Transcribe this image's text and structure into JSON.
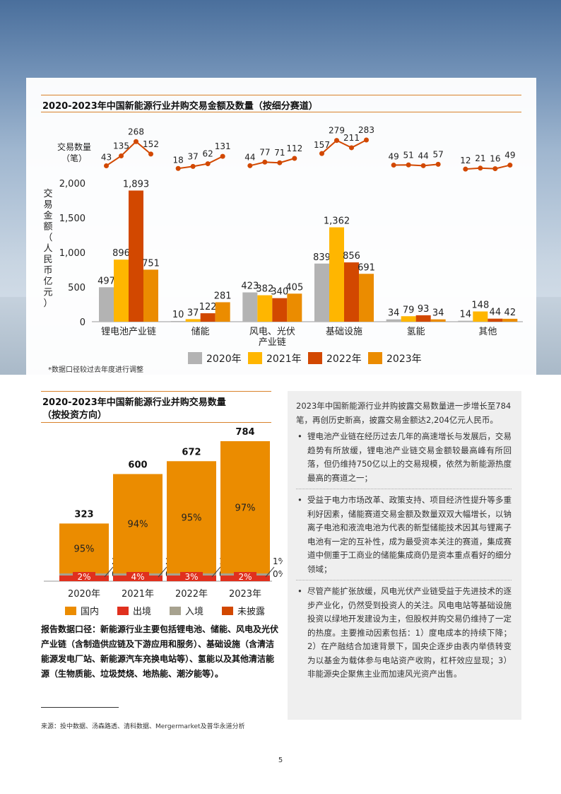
{
  "chart1": {
    "title": "2020-2023年中国新能源行业并购交易金额及数量（按细分赛道）",
    "count_label_line1": "交易数量",
    "count_label_line2": "（笔）",
    "ylabel": "交易金额（人民币亿元）",
    "note": "*数据口径较过去年度进行调整",
    "chart_data": {
      "type": "bar",
      "categories": [
        "锂电池产业链",
        "储能",
        "风电、光伏产业链",
        "基础设施",
        "氢能",
        "其他"
      ],
      "category_lines": [
        [
          "锂电池产业链"
        ],
        [
          "储能"
        ],
        [
          "风电、光伏",
          "产业链"
        ],
        [
          "基础设施"
        ],
        [
          "氢能"
        ],
        [
          "其他"
        ]
      ],
      "ylim": [
        0,
        2000
      ],
      "yticks": [
        "0",
        "500",
        "1,000",
        "1,500",
        "2,000"
      ],
      "yticks_values": [
        0,
        500,
        1000,
        1500,
        2000
      ],
      "series": [
        {
          "name": "2020年",
          "color": "#b3b3b3",
          "values": [
            497,
            10,
            423,
            839,
            34,
            14
          ],
          "labels": [
            "497",
            "10",
            "423",
            "839",
            "34",
            "14"
          ],
          "counts": [
            43,
            18,
            44,
            157,
            49,
            12
          ]
        },
        {
          "name": "2021年",
          "color": "#ffb600",
          "values": [
            896,
            37,
            382,
            1362,
            79,
            148
          ],
          "labels": [
            "896",
            "37",
            "382",
            "1,362",
            "79",
            "148"
          ],
          "counts": [
            135,
            37,
            77,
            279,
            51,
            21
          ]
        },
        {
          "name": "2022年",
          "color": "#d24800",
          "values": [
            1893,
            122,
            340,
            856,
            93,
            44
          ],
          "labels": [
            "1,893",
            "122",
            "340",
            "856",
            "93",
            "44"
          ],
          "counts": [
            268,
            62,
            71,
            211,
            44,
            16
          ]
        },
        {
          "name": "2023年",
          "color": "#eb8c00",
          "values": [
            751,
            281,
            405,
            691,
            34,
            42
          ],
          "labels": [
            "751",
            "281",
            "405",
            "691",
            "34",
            "42"
          ],
          "counts": [
            152,
            131,
            112,
            283,
            57,
            49
          ]
        }
      ],
      "line_color": "#d24800"
    }
  },
  "chart2": {
    "title_line1": "2020-2023年中国新能源行业并购交易数量",
    "title_line2": "（按投资方向）",
    "chart_data": {
      "type": "bar",
      "categories": [
        "2020年",
        "2021年",
        "2022年",
        "2023年"
      ],
      "totals": [
        323,
        600,
        672,
        784
      ],
      "total_labels": [
        "323",
        "600",
        "672",
        "784"
      ],
      "series": [
        {
          "name": "国内",
          "color": "#eb8c00",
          "pct": [
            95,
            94,
            95,
            97
          ],
          "labels": [
            "95%",
            "94%",
            "95%",
            "97%"
          ]
        },
        {
          "name": "出境",
          "color": "#e0301e",
          "pct": [
            2,
            4,
            3,
            2
          ],
          "labels": [
            "2%",
            "4%",
            "3%",
            "2%"
          ]
        },
        {
          "name": "入境",
          "color": "#a7a28f",
          "pct": [
            2,
            2,
            1,
            1
          ],
          "labels": [
            "2%",
            "2%",
            "1%",
            "1%"
          ]
        },
        {
          "name": "未披露",
          "color": "#d24800",
          "pct": [
            0,
            0,
            0,
            0
          ],
          "labels": [
            "0%",
            "0%",
            "0%",
            "0%"
          ]
        }
      ]
    }
  },
  "scope_text": "报告数据口径：新能源行业主要包括锂电池、储能、风电及光伏产业链（含制造供应链及下游应用和服务）、基础设施（含清洁能源发电厂站、新能源汽车充换电站等）、氢能以及其他清洁能源（生物质能、垃圾焚烧、地热能、潮汐能等）。",
  "source_text": "来源：投中数据、汤森路透、清科数据、Mergermarket及普华永道分析",
  "textbox": {
    "intro": "2023年中国新能源行业并购披露交易数量进一步增长至784笔，再创历史新高，披露交易金额达2,204亿元人民币。",
    "bullets": [
      "锂电池产业链在经历过去几年的高速增长与发展后，交易趋势有所放缓，锂电池产业链交易金额较最高峰有所回落，但仍维持750亿以上的交易规模，依然为新能源热度最高的赛道之一；",
      "受益于电力市场改革、政策支持、项目经济性提升等多重利好因素，储能赛道交易金额及数量双双大幅增长，以钠离子电池和液流电池为代表的新型储能技术因其与锂离子电池有一定的互补性，成为最受资本关注的赛道，集成赛道中侧重于工商业的储能集成商仍是资本重点看好的细分领域；",
      "尽管产能扩张放缓，风电光伏产业链受益于先进技术的逐步产业化，仍然受到投资人的关注。风电电站等基础设施投资以绿地开发建设为主，但股权并购交易仍维持了一定的热度。主要推动因素包括：1）度电成本的持续下降；2）在产融结合加速背景下，国央企逐步由表内举债转变为以基金为载体参与电站资产收购，杠杆效应显现；3）非能源央企聚焦主业而加速风光资产出售。"
    ]
  },
  "page_number": "5"
}
